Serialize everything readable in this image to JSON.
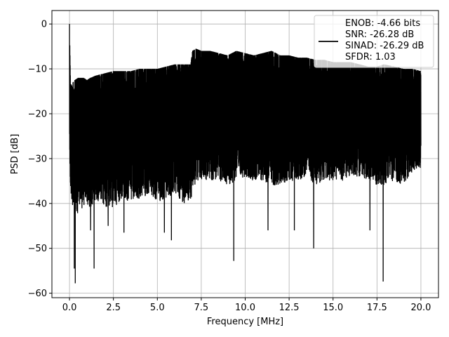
{
  "chart_data": {
    "type": "line",
    "title": "",
    "xlabel": "Frequency [MHz]",
    "ylabel": "PSD [dB]",
    "xlim": [
      -1.0,
      21.0
    ],
    "ylim": [
      -61.0,
      3.0
    ],
    "x_ticks": [
      0.0,
      2.5,
      5.0,
      7.5,
      10.0,
      12.5,
      15.0,
      17.5,
      20.0
    ],
    "x_tick_labels": [
      "0.0",
      "2.5",
      "5.0",
      "7.5",
      "10.0",
      "12.5",
      "15.0",
      "17.5",
      "20.0"
    ],
    "y_ticks": [
      0,
      -10,
      -20,
      -30,
      -40,
      -50,
      -60
    ],
    "y_tick_labels": [
      "0",
      "−10",
      "−20",
      "−30",
      "−40",
      "−50",
      "−60"
    ],
    "grid": true,
    "legend": {
      "placement": "upper-right",
      "entries": [
        "ENOB: -4.66 bits\nSNR: -26.28 dB\nSINAD: -26.29 dB\nSFDR: 1.03"
      ]
    },
    "line_color": "#000000",
    "series": [
      {
        "x": [
          0.0,
          0.02,
          0.05,
          0.1,
          0.2,
          0.3,
          0.5,
          0.8,
          1.0,
          1.2,
          1.5,
          2.0,
          2.5,
          3.0,
          3.5,
          4.0,
          4.5,
          5.0,
          5.5,
          6.0,
          6.5,
          6.9,
          7.0,
          7.2,
          7.5,
          8.0,
          8.5,
          9.0,
          9.5,
          10.0,
          10.5,
          11.0,
          11.5,
          12.0,
          12.5,
          13.0,
          13.5,
          14.0,
          14.5,
          15.0,
          15.5,
          16.0,
          16.5,
          17.0,
          17.5,
          17.9,
          18.5,
          19.0,
          19.5,
          20.0
        ],
        "upper": [
          0.0,
          -5.0,
          -12.0,
          -14.0,
          -13.0,
          -12.5,
          -12.0,
          -12.0,
          -12.5,
          -12.0,
          -11.5,
          -11.0,
          -10.5,
          -10.5,
          -10.5,
          -10.0,
          -10.0,
          -10.0,
          -9.5,
          -9.0,
          -9.0,
          -9.0,
          -6.0,
          -5.5,
          -6.0,
          -6.0,
          -6.5,
          -7.0,
          -6.0,
          -6.5,
          -7.0,
          -6.5,
          -6.0,
          -7.0,
          -7.0,
          -7.5,
          -7.5,
          -8.0,
          -8.0,
          -8.5,
          -8.5,
          -8.5,
          -9.0,
          -9.5,
          -9.5,
          -9.0,
          -9.5,
          -10.0,
          -10.0,
          -10.5
        ],
        "lower": [
          -28.0,
          -36.0,
          -40.0,
          -42.0,
          -44.0,
          -46.0,
          -45.0,
          -44.0,
          -43.0,
          -45.0,
          -42.0,
          -44.0,
          -44.0,
          -42.0,
          -43.0,
          -42.0,
          -41.0,
          -43.0,
          -42.0,
          -41.0,
          -43.0,
          -42.0,
          -41.0,
          -38.0,
          -38.0,
          -38.0,
          -38.0,
          -39.0,
          -38.0,
          -37.0,
          -38.0,
          -38.0,
          -39.0,
          -39.0,
          -38.0,
          -38.0,
          -37.0,
          -39.0,
          -38.0,
          -38.0,
          -38.0,
          -37.0,
          -37.0,
          -38.0,
          -39.0,
          -39.0,
          -38.0,
          -39.0,
          -36.0,
          -35.0
        ],
        "dips": [
          {
            "x": 0.27,
            "y": -54.5
          },
          {
            "x": 0.33,
            "y": -57.8
          },
          {
            "x": 1.2,
            "y": -46.0
          },
          {
            "x": 1.4,
            "y": -54.5
          },
          {
            "x": 2.2,
            "y": -45.0
          },
          {
            "x": 3.1,
            "y": -46.5
          },
          {
            "x": 5.4,
            "y": -46.5
          },
          {
            "x": 5.8,
            "y": -48.2
          },
          {
            "x": 9.35,
            "y": -52.8
          },
          {
            "x": 11.3,
            "y": -46.0
          },
          {
            "x": 12.8,
            "y": -46.0
          },
          {
            "x": 13.9,
            "y": -50.0
          },
          {
            "x": 17.1,
            "y": -46.0
          },
          {
            "x": 17.85,
            "y": -57.4
          }
        ]
      }
    ]
  }
}
